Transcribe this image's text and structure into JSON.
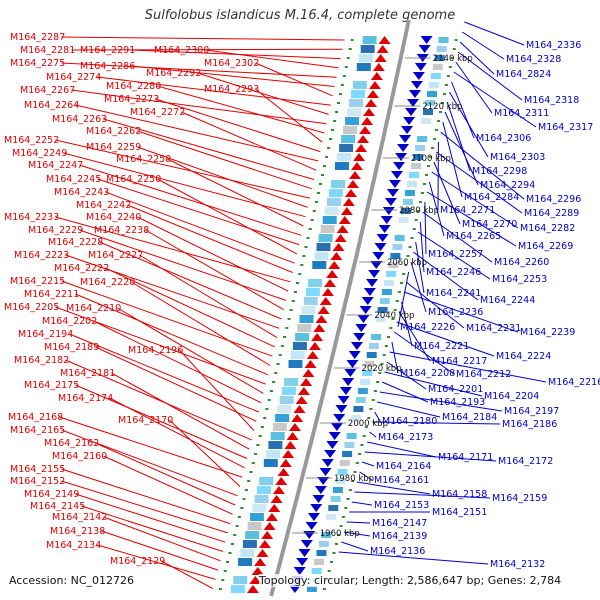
{
  "title": "Sulfolobus islandicus M.16.4, complete genome",
  "footer": {
    "accession": "Accession: NC_012726",
    "stats": "Topology: circular; Length: 2,586,647 bp; Genes: 2,784"
  },
  "colors": {
    "forward": "#e00000",
    "reverse": "#0000cc",
    "backbone": "#999999"
  },
  "kbp_marks": [
    "2140 kbp",
    "2120 kbp",
    "2100 kbp",
    "2080 kbp",
    "2060 kbp",
    "2040 kbp",
    "2020 kbp",
    "2000 kbp",
    "1980 kbp",
    "1960 kbp"
  ],
  "forward_genes": [
    "M164_2287",
    "M164_2281",
    "M164_2291",
    "M164_2300",
    "M164_2275",
    "M164_2286",
    "M164_2302",
    "M164_2274",
    "M164_2292",
    "M164_2267",
    "M164_2280",
    "M164_2293",
    "M164_2273",
    "M164_2264",
    "M164_2272",
    "M164_2263",
    "M164_2262",
    "M164_2252",
    "M164_2259",
    "M164_2249",
    "M164_2258",
    "M164_2247",
    "M164_2245",
    "M164_2250",
    "M164_2243",
    "M164_2242",
    "M164_2233",
    "M164_2240",
    "M164_2229",
    "M164_2238",
    "M164_2228",
    "M164_2223",
    "M164_2227",
    "M164_2222",
    "M164_2215",
    "M164_2220",
    "M164_2211",
    "M164_2205",
    "M164_2210",
    "M164_2202",
    "M164_2194",
    "M164_2189",
    "M164_2196",
    "M164_2182",
    "M164_2181",
    "M164_2175",
    "M164_2174",
    "M164_2168",
    "M164_2170",
    "M164_2165",
    "M164_2162",
    "M164_2160",
    "M164_2155",
    "M164_2152",
    "M164_2149",
    "M164_2145",
    "M164_2142",
    "M164_2138",
    "M164_2134",
    "M164_2129"
  ],
  "reverse_genes": [
    "M164_2336",
    "M164_2328",
    "M164_2824",
    "M164_2318",
    "M164_2311",
    "M164_2317",
    "M164_2306",
    "M164_2303",
    "M164_2298",
    "M164_2294",
    "M164_2284",
    "M164_2296",
    "M164_2271",
    "M164_2289",
    "M164_2270",
    "M164_2282",
    "M164_2265",
    "M164_2269",
    "M164_2257",
    "M164_2260",
    "M164_2246",
    "M164_2253",
    "M164_2241",
    "M164_2244",
    "M164_2236",
    "M164_2226",
    "M164_2231",
    "M164_2239",
    "M164_2221",
    "M164_2217",
    "M164_2224",
    "M164_2212",
    "M164_2208",
    "M164_2216",
    "M164_2201",
    "M164_2204",
    "M164_2193",
    "M164_2197",
    "M164_2184",
    "M164_2180",
    "M164_2186",
    "M164_2173",
    "M164_2171",
    "M164_2172",
    "M164_2164",
    "M164_2161",
    "M164_2158",
    "M164_2159",
    "M164_2153",
    "M164_2151",
    "M164_2147",
    "M164_2139",
    "M164_2136",
    "M164_2132"
  ]
}
